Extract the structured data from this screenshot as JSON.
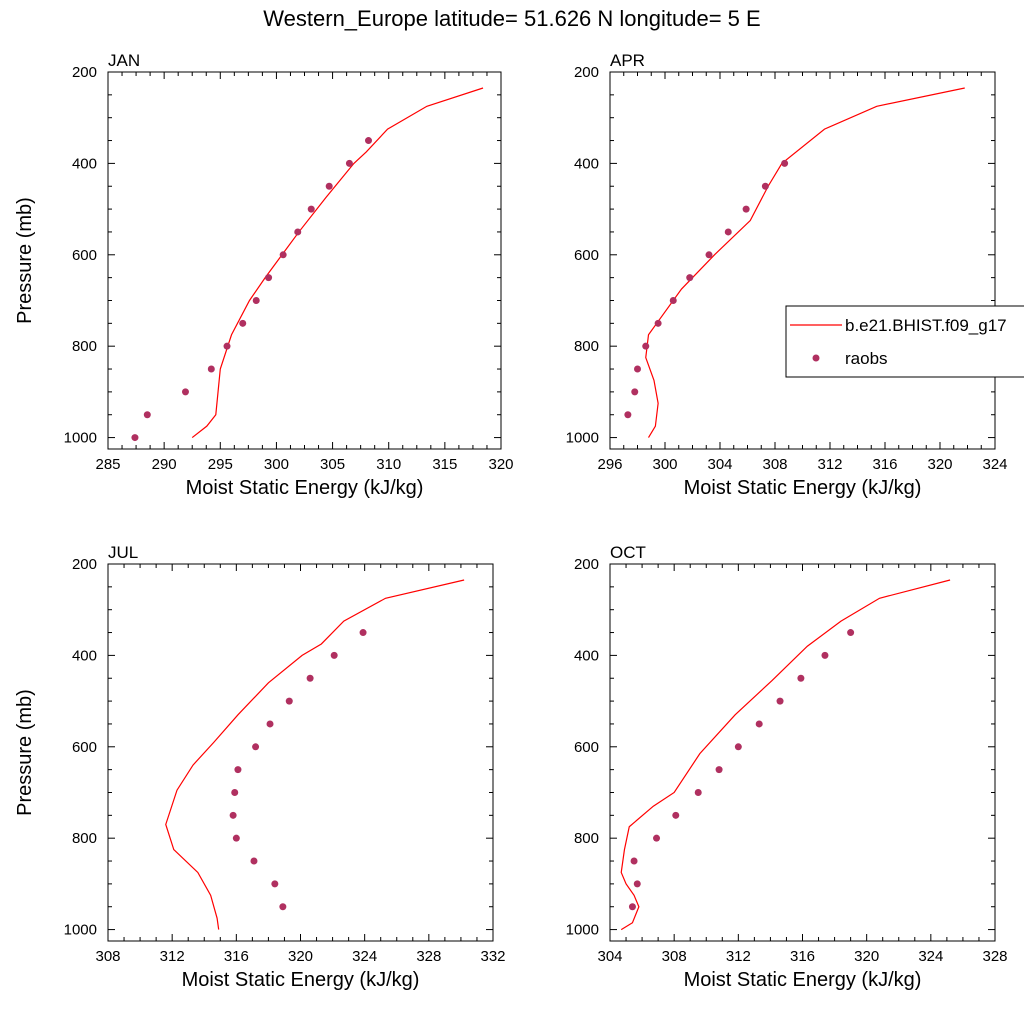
{
  "figure": {
    "title": "Western_Europe  latitude= 51.626 N longitude= 5 E"
  },
  "legend": {
    "model_label": "b.e21.BHIST.f09_g17",
    "obs_label": "raobs",
    "placement": "right of APR panel",
    "model_color": "#ff0000",
    "obs_color": "#b03060"
  },
  "chart_data": [
    {
      "type": "line",
      "title": "JAN",
      "xlabel": "Moist Static Energy (kJ/kg)",
      "ylabel": "Pressure (mb)",
      "xlim": [
        285,
        320
      ],
      "ylim": [
        1025,
        200
      ],
      "xticks": [
        285,
        290,
        295,
        300,
        305,
        310,
        315,
        320
      ],
      "yticks": [
        200,
        400,
        600,
        800,
        1000
      ],
      "series": [
        {
          "name": "b.e21.BHIST.f09_g17",
          "kind": "line",
          "x": [
            292.5,
            293.8,
            294.6,
            294.8,
            295.0,
            296.0,
            297.6,
            299.0,
            300.5,
            302.0,
            304.4,
            306.9,
            308.0,
            309.9,
            313.4,
            318.4
          ],
          "y": [
            1000,
            975,
            950,
            900,
            850,
            775,
            700,
            650,
            600,
            550,
            475,
            400,
            375,
            325,
            275,
            235
          ]
        },
        {
          "name": "raobs",
          "kind": "scatter",
          "x": [
            287.4,
            288.5,
            291.9,
            294.2,
            295.6,
            297.0,
            298.2,
            299.3,
            300.6,
            301.9,
            303.1,
            304.7,
            306.5,
            308.2
          ],
          "y": [
            1000,
            950,
            900,
            850,
            800,
            750,
            700,
            650,
            600,
            550,
            500,
            450,
            400,
            350
          ]
        }
      ]
    },
    {
      "type": "line",
      "title": "APR",
      "xlabel": "Moist Static Energy (kJ/kg)",
      "ylabel": "",
      "xlim": [
        296,
        324
      ],
      "ylim": [
        1025,
        200
      ],
      "xticks": [
        296,
        300,
        304,
        308,
        312,
        316,
        320,
        324
      ],
      "yticks": [
        200,
        400,
        600,
        800,
        1000
      ],
      "series": [
        {
          "name": "b.e21.BHIST.f09_g17",
          "kind": "line",
          "x": [
            298.8,
            299.3,
            299.5,
            299.2,
            298.6,
            298.8,
            299.4,
            301.2,
            303.6,
            306.2,
            307.5,
            308.5,
            311.6,
            315.4,
            321.8
          ],
          "y": [
            1000,
            975,
            925,
            875,
            825,
            775,
            750,
            675,
            600,
            525,
            450,
            400,
            325,
            275,
            235
          ]
        },
        {
          "name": "raobs",
          "kind": "scatter",
          "x": [
            297.3,
            297.8,
            298.0,
            298.6,
            299.5,
            300.6,
            301.8,
            303.2,
            304.6,
            305.9,
            307.3,
            308.7
          ],
          "y": [
            950,
            900,
            850,
            800,
            750,
            700,
            650,
            600,
            550,
            500,
            450,
            400
          ]
        }
      ]
    },
    {
      "type": "line",
      "title": "JUL",
      "xlabel": "Moist Static Energy (kJ/kg)",
      "ylabel": "Pressure (mb)",
      "xlim": [
        308,
        332
      ],
      "ylim": [
        1025,
        200
      ],
      "xticks": [
        308,
        312,
        316,
        320,
        324,
        328,
        332
      ],
      "yticks": [
        200,
        400,
        600,
        800,
        1000
      ],
      "series": [
        {
          "name": "b.e21.BHIST.f09_g17",
          "kind": "line",
          "x": [
            314.9,
            314.8,
            314.4,
            313.6,
            312.1,
            311.6,
            312.3,
            313.3,
            314.6,
            316.1,
            318.0,
            320.1,
            321.3,
            322.7,
            325.3,
            330.2
          ],
          "y": [
            1000,
            975,
            925,
            875,
            825,
            770,
            695,
            640,
            590,
            530,
            460,
            400,
            375,
            325,
            275,
            235
          ]
        },
        {
          "name": "raobs",
          "kind": "scatter",
          "x": [
            318.9,
            318.4,
            317.1,
            316.0,
            315.8,
            315.9,
            316.1,
            317.2,
            318.1,
            319.3,
            320.6,
            322.1,
            323.9
          ],
          "y": [
            950,
            900,
            850,
            800,
            750,
            700,
            650,
            600,
            550,
            500,
            450,
            400,
            350
          ]
        }
      ]
    },
    {
      "type": "line",
      "title": "OCT",
      "xlabel": "Moist Static Energy (kJ/kg)",
      "ylabel": "",
      "xlim": [
        304,
        328
      ],
      "ylim": [
        1025,
        200
      ],
      "xticks": [
        304,
        308,
        312,
        316,
        320,
        324,
        328
      ],
      "yticks": [
        200,
        400,
        600,
        800,
        1000
      ],
      "series": [
        {
          "name": "b.e21.BHIST.f09_g17",
          "kind": "line",
          "x": [
            304.7,
            305.4,
            305.8,
            305.5,
            305.0,
            304.7,
            304.9,
            305.2,
            306.7,
            308.0,
            309.6,
            311.8,
            314.1,
            316.3,
            318.4,
            320.8,
            325.2
          ],
          "y": [
            1000,
            985,
            950,
            925,
            900,
            875,
            825,
            775,
            730,
            700,
            615,
            530,
            455,
            380,
            325,
            275,
            235
          ]
        },
        {
          "name": "raobs",
          "kind": "scatter",
          "x": [
            305.4,
            305.7,
            305.5,
            306.9,
            308.1,
            309.5,
            310.8,
            312.0,
            313.3,
            314.6,
            315.9,
            317.4,
            319.0
          ],
          "y": [
            950,
            900,
            850,
            800,
            750,
            700,
            650,
            600,
            550,
            500,
            450,
            400,
            350
          ]
        }
      ]
    }
  ]
}
